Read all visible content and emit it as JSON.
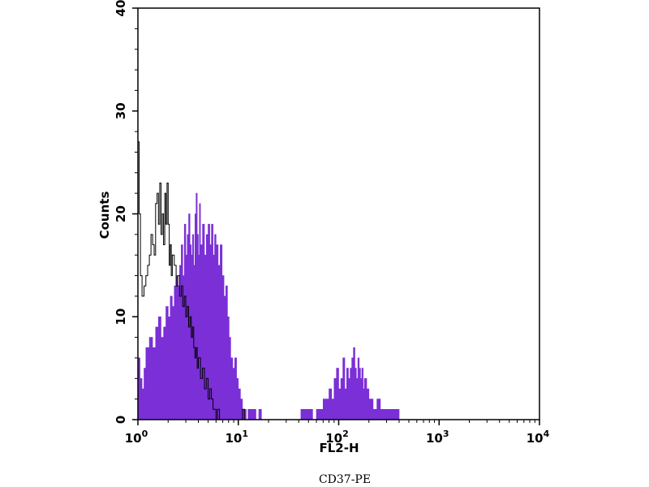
{
  "chart_data": {
    "type": "histogram",
    "xlabel": "FL2-H",
    "ylabel": "Counts",
    "x_scale": "log",
    "xlim": [
      1,
      10000
    ],
    "ylim": [
      0,
      40
    ],
    "x_ticks": [
      {
        "base": "10",
        "exp": "0",
        "value": 1
      },
      {
        "base": "10",
        "exp": "1",
        "value": 10
      },
      {
        "base": "10",
        "exp": "2",
        "value": 100
      },
      {
        "base": "10",
        "exp": "3",
        "value": 1000
      },
      {
        "base": "10",
        "exp": "4",
        "value": 10000
      }
    ],
    "y_ticks": [
      "0",
      "10",
      "20",
      "30",
      "40"
    ],
    "grid": false,
    "series": [
      {
        "style": "filled",
        "color": "#7b2fd6",
        "points": [
          [
            1.0,
            6
          ],
          [
            1.05,
            4
          ],
          [
            1.1,
            3
          ],
          [
            1.15,
            5
          ],
          [
            1.2,
            7
          ],
          [
            1.3,
            8
          ],
          [
            1.4,
            7
          ],
          [
            1.5,
            9
          ],
          [
            1.6,
            10
          ],
          [
            1.7,
            8
          ],
          [
            1.8,
            9
          ],
          [
            1.9,
            11
          ],
          [
            2.0,
            10
          ],
          [
            2.1,
            12
          ],
          [
            2.2,
            11
          ],
          [
            2.3,
            13
          ],
          [
            2.4,
            14
          ],
          [
            2.5,
            13
          ],
          [
            2.6,
            15
          ],
          [
            2.7,
            17
          ],
          [
            2.8,
            14
          ],
          [
            2.9,
            19
          ],
          [
            3.0,
            16
          ],
          [
            3.1,
            18
          ],
          [
            3.2,
            20
          ],
          [
            3.3,
            17
          ],
          [
            3.4,
            16
          ],
          [
            3.5,
            18
          ],
          [
            3.6,
            15
          ],
          [
            3.7,
            20
          ],
          [
            3.8,
            22
          ],
          [
            3.9,
            18
          ],
          [
            4.0,
            16
          ],
          [
            4.1,
            21
          ],
          [
            4.2,
            17
          ],
          [
            4.4,
            19
          ],
          [
            4.6,
            16
          ],
          [
            4.8,
            18
          ],
          [
            5.0,
            19
          ],
          [
            5.2,
            17
          ],
          [
            5.4,
            19
          ],
          [
            5.6,
            16
          ],
          [
            5.8,
            18
          ],
          [
            6.0,
            17
          ],
          [
            6.3,
            15
          ],
          [
            6.6,
            17
          ],
          [
            6.9,
            14
          ],
          [
            7.2,
            12
          ],
          [
            7.5,
            13
          ],
          [
            7.8,
            10
          ],
          [
            8.1,
            8
          ],
          [
            8.4,
            6
          ],
          [
            8.8,
            5
          ],
          [
            9.2,
            6
          ],
          [
            9.6,
            4
          ],
          [
            10.0,
            3
          ],
          [
            10.5,
            2
          ],
          [
            11.0,
            1
          ],
          [
            11.5,
            1
          ],
          [
            12.0,
            0
          ],
          [
            12.5,
            1
          ],
          [
            13.0,
            1
          ],
          [
            14.0,
            1
          ],
          [
            15.0,
            0
          ],
          [
            16.0,
            1
          ],
          [
            17.0,
            0
          ],
          [
            40,
            0
          ],
          [
            42,
            1
          ],
          [
            45,
            1
          ],
          [
            50,
            1
          ],
          [
            55,
            0
          ],
          [
            60,
            1
          ],
          [
            65,
            1
          ],
          [
            70,
            2
          ],
          [
            75,
            2
          ],
          [
            80,
            3
          ],
          [
            85,
            2
          ],
          [
            90,
            4
          ],
          [
            95,
            5
          ],
          [
            100,
            3
          ],
          [
            105,
            4
          ],
          [
            110,
            6
          ],
          [
            115,
            3
          ],
          [
            120,
            5
          ],
          [
            125,
            4
          ],
          [
            130,
            5
          ],
          [
            135,
            6
          ],
          [
            140,
            7
          ],
          [
            145,
            5
          ],
          [
            150,
            4
          ],
          [
            155,
            6
          ],
          [
            160,
            5
          ],
          [
            165,
            4
          ],
          [
            170,
            5
          ],
          [
            175,
            3
          ],
          [
            180,
            4
          ],
          [
            190,
            3
          ],
          [
            200,
            2
          ],
          [
            210,
            2
          ],
          [
            220,
            1
          ],
          [
            240,
            2
          ],
          [
            260,
            1
          ],
          [
            280,
            1
          ],
          [
            300,
            1
          ],
          [
            330,
            1
          ],
          [
            360,
            1
          ],
          [
            400,
            0
          ]
        ]
      },
      {
        "style": "outline",
        "color": "#000000",
        "points": [
          [
            1.0,
            27
          ],
          [
            1.03,
            20
          ],
          [
            1.06,
            14
          ],
          [
            1.1,
            12
          ],
          [
            1.15,
            13
          ],
          [
            1.2,
            14
          ],
          [
            1.25,
            15
          ],
          [
            1.3,
            16
          ],
          [
            1.35,
            18
          ],
          [
            1.4,
            17
          ],
          [
            1.45,
            16
          ],
          [
            1.5,
            21
          ],
          [
            1.55,
            22
          ],
          [
            1.6,
            19
          ],
          [
            1.65,
            23
          ],
          [
            1.7,
            18
          ],
          [
            1.75,
            20
          ],
          [
            1.8,
            17
          ],
          [
            1.85,
            22
          ],
          [
            1.9,
            19
          ],
          [
            1.95,
            23
          ],
          [
            2.0,
            19
          ],
          [
            2.05,
            15
          ],
          [
            2.1,
            17
          ],
          [
            2.15,
            14
          ],
          [
            2.2,
            16
          ],
          [
            2.3,
            15
          ],
          [
            2.4,
            13
          ],
          [
            2.5,
            14
          ],
          [
            2.6,
            12
          ],
          [
            2.7,
            13
          ],
          [
            2.8,
            11
          ],
          [
            2.9,
            12
          ],
          [
            3.0,
            10
          ],
          [
            3.1,
            11
          ],
          [
            3.2,
            9
          ],
          [
            3.3,
            10
          ],
          [
            3.4,
            8
          ],
          [
            3.5,
            9
          ],
          [
            3.6,
            7
          ],
          [
            3.7,
            6
          ],
          [
            3.8,
            7
          ],
          [
            3.9,
            5
          ],
          [
            4.0,
            6
          ],
          [
            4.2,
            4
          ],
          [
            4.4,
            5
          ],
          [
            4.6,
            3
          ],
          [
            4.8,
            4
          ],
          [
            5.0,
            2
          ],
          [
            5.2,
            3
          ],
          [
            5.4,
            2
          ],
          [
            5.6,
            1
          ],
          [
            5.8,
            1
          ],
          [
            6.0,
            0
          ],
          [
            6.2,
            1
          ],
          [
            6.5,
            0
          ],
          [
            7.0,
            0
          ],
          [
            10.0,
            0
          ],
          [
            11.0,
            1
          ],
          [
            11.5,
            0
          ]
        ]
      }
    ]
  },
  "caption": "CD37-PE"
}
